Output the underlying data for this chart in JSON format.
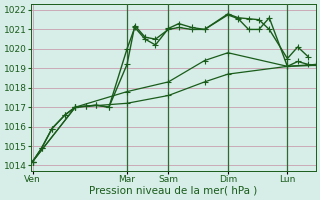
{
  "background_color": "#d6ede8",
  "plot_bg_color": "#d6ede8",
  "grid_color": "#c8a0b0",
  "line_color": "#1a5c1a",
  "vline_color": "#336633",
  "ylim": [
    1013.7,
    1022.3
  ],
  "yticks": [
    1014,
    1015,
    1016,
    1017,
    1018,
    1019,
    1020,
    1021,
    1022
  ],
  "xlabel": "Pression niveau de la mer( hPa )",
  "day_labels": [
    "Ven",
    "Mar",
    "Sam",
    "Dim",
    "Lun"
  ],
  "day_positions": [
    0.5,
    37,
    53,
    76,
    99
  ],
  "vline_positions": [
    37,
    53,
    76,
    99
  ],
  "xlim": [
    0,
    110
  ],
  "series": [
    {
      "x": [
        0.5,
        4,
        8,
        13,
        17,
        21,
        25,
        30,
        37,
        40,
        44,
        48,
        53,
        57,
        62,
        67,
        76,
        80,
        84,
        88,
        92,
        99,
        103,
        107
      ],
      "y": [
        1014.2,
        1014.9,
        1015.9,
        1016.6,
        1017.0,
        1017.05,
        1017.1,
        1017.0,
        1020.0,
        1021.1,
        1020.5,
        1020.2,
        1021.05,
        1021.3,
        1021.1,
        1021.0,
        1021.8,
        1021.6,
        1021.55,
        1021.5,
        1021.0,
        1019.5,
        1020.1,
        1019.6
      ]
    },
    {
      "x": [
        0.5,
        4,
        8,
        13,
        17,
        21,
        25,
        30,
        37,
        40,
        44,
        48,
        53,
        57,
        62,
        67,
        76,
        80,
        84,
        88,
        92,
        99,
        103,
        107
      ],
      "y": [
        1014.2,
        1014.9,
        1015.9,
        1016.6,
        1017.0,
        1017.05,
        1017.1,
        1017.0,
        1019.2,
        1021.2,
        1020.6,
        1020.5,
        1021.0,
        1021.1,
        1021.0,
        1021.0,
        1021.75,
        1021.55,
        1021.0,
        1021.0,
        1021.6,
        1019.1,
        1019.35,
        1019.2
      ]
    },
    {
      "x": [
        0.5,
        17,
        37,
        53,
        67,
        76,
        99,
        110
      ],
      "y": [
        1014.2,
        1017.0,
        1017.8,
        1018.3,
        1019.4,
        1019.8,
        1019.1,
        1019.2
      ]
    },
    {
      "x": [
        0.5,
        17,
        37,
        53,
        67,
        76,
        99,
        110
      ],
      "y": [
        1014.2,
        1017.0,
        1017.2,
        1017.6,
        1018.3,
        1018.7,
        1019.1,
        1019.15
      ]
    }
  ],
  "linewidths": [
    1.0,
    1.0,
    0.9,
    0.9
  ],
  "marker": "+",
  "markersize": 4,
  "fontsize_ticks": 6.5,
  "fontsize_xlabel": 7.5
}
